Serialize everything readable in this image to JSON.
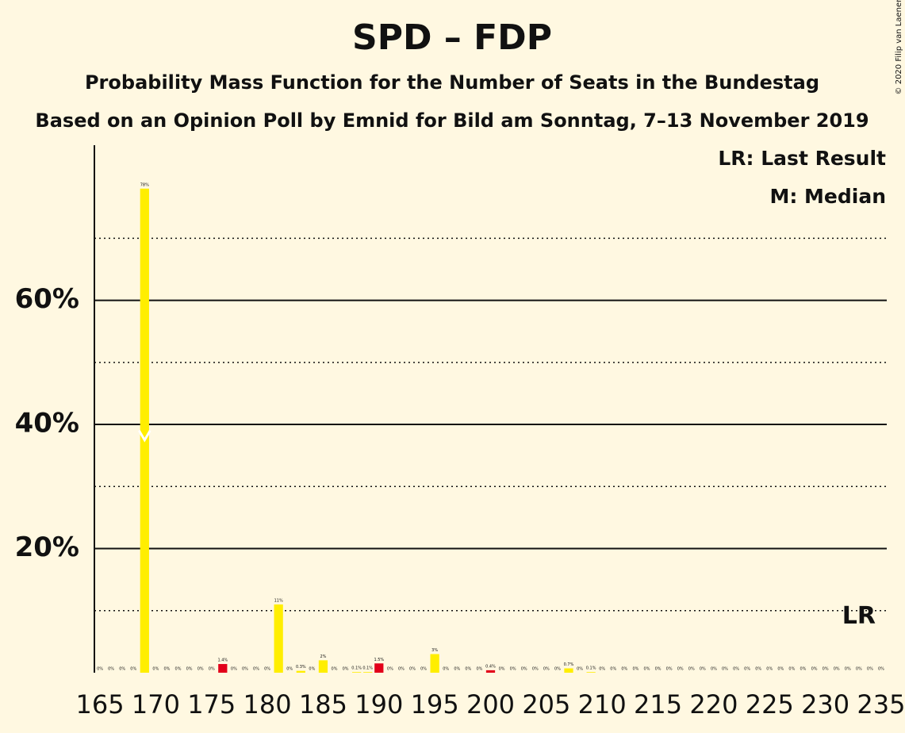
{
  "chart_data": {
    "type": "bar",
    "title": "SPD – FDP",
    "subtitle": "Probability Mass Function for the Number of Seats in the Bundestag",
    "subtitle2": "Based on an Opinion Poll by Emnid for Bild am Sonntag, 7–13 November 2019",
    "copyright": "© 2020 Filip van Laenen",
    "legend": [
      "LR: Last Result",
      "M: Median"
    ],
    "x": [
      165,
      166,
      167,
      168,
      169,
      170,
      171,
      172,
      173,
      174,
      175,
      176,
      177,
      178,
      179,
      180,
      181,
      182,
      183,
      184,
      185,
      186,
      187,
      188,
      189,
      190,
      191,
      192,
      193,
      194,
      195,
      196,
      197,
      198,
      199,
      200,
      201,
      202,
      203,
      204,
      205,
      206,
      207,
      208,
      209,
      210,
      211,
      212,
      213,
      214,
      215,
      216,
      217,
      218,
      219,
      220,
      221,
      222,
      223,
      224,
      225,
      226,
      227,
      228,
      229,
      230,
      231,
      232,
      233,
      234,
      235
    ],
    "values": [
      0,
      0,
      0,
      0,
      78,
      0,
      0,
      0,
      0,
      0,
      0,
      1.4,
      0,
      0,
      0,
      0,
      11,
      0,
      0.3,
      0,
      2,
      0,
      0,
      0.1,
      0.1,
      1.5,
      0,
      0,
      0,
      0,
      3,
      0,
      0,
      0,
      0,
      0.4,
      0,
      0,
      0,
      0,
      0,
      0,
      0.7,
      0,
      0.1,
      0,
      0,
      0,
      0,
      0,
      0,
      0,
      0,
      0,
      0,
      0,
      0,
      0,
      0,
      0,
      0,
      0,
      0,
      0,
      0,
      0,
      0,
      0,
      0,
      0,
      0
    ],
    "value_labels": [
      "0%",
      "0%",
      "0%",
      "0%",
      "78%",
      "0%",
      "0%",
      "0%",
      "0%",
      "0%",
      "0%",
      "1.4%",
      "0%",
      "0%",
      "0%",
      "0%",
      "11%",
      "0%",
      "0.3%",
      "0%",
      "2%",
      "0%",
      "0%",
      "0.1%",
      "0.1%",
      "1.5%",
      "0%",
      "0%",
      "0%",
      "0%",
      "3%",
      "0%",
      "0%",
      "0%",
      "0%",
      "0.4%",
      "0%",
      "0%",
      "0%",
      "0%",
      "0%",
      "0%",
      "0.7%",
      "0%",
      "0.1%",
      "0%",
      "0%",
      "0%",
      "0%",
      "0%",
      "0%",
      "0%",
      "0%",
      "0%",
      "0%",
      "0%",
      "0%",
      "0%",
      "0%",
      "0%",
      "0%",
      "0%",
      "0%",
      "0%",
      "0%",
      "0%",
      "0%",
      "0%",
      "0%",
      "0%",
      "0%"
    ],
    "colors": [
      "#ffee00",
      "#ffee00",
      "#ffee00",
      "#ffee00",
      "#ffee00",
      "#ffee00",
      "#ffee00",
      "#ffee00",
      "#ffee00",
      "#ffee00",
      "#ffee00",
      "#e2001a",
      "#ffee00",
      "#ffee00",
      "#ffee00",
      "#ffee00",
      "#ffee00",
      "#ffee00",
      "#ffee00",
      "#ffee00",
      "#ffee00",
      "#ffee00",
      "#ffee00",
      "#ffee00",
      "#ffee00",
      "#e2001a",
      "#ffee00",
      "#ffee00",
      "#ffee00",
      "#ffee00",
      "#ffee00",
      "#ffee00",
      "#ffee00",
      "#ffee00",
      "#ffee00",
      "#e2001a",
      "#ffee00",
      "#ffee00",
      "#ffee00",
      "#ffee00",
      "#ffee00",
      "#ffee00",
      "#ffee00",
      "#ffee00",
      "#ffee00",
      "#ffee00",
      "#ffee00",
      "#ffee00",
      "#ffee00",
      "#ffee00",
      "#ffee00",
      "#ffee00",
      "#ffee00",
      "#ffee00",
      "#ffee00",
      "#ffee00",
      "#ffee00",
      "#ffee00",
      "#ffee00",
      "#ffee00",
      "#ffee00",
      "#ffee00",
      "#ffee00",
      "#ffee00",
      "#ffee00",
      "#ffee00",
      "#ffee00",
      "#ffee00",
      "#ffee00",
      "#ffee00",
      "#ffee00"
    ],
    "median": 169,
    "last_result": 233,
    "last_result_label": "LR",
    "xlim": [
      164.5,
      235.5
    ],
    "xticks": [
      165,
      170,
      175,
      180,
      185,
      190,
      195,
      200,
      205,
      210,
      215,
      220,
      225,
      230,
      235
    ],
    "ylim": [
      0,
      85
    ],
    "yticks": [
      {
        "value": 20,
        "label": "20%"
      },
      {
        "value": 40,
        "label": "40%"
      },
      {
        "value": 60,
        "label": "60%"
      }
    ],
    "minor_yticks": [
      10,
      30,
      50,
      70
    ],
    "grid": true
  }
}
